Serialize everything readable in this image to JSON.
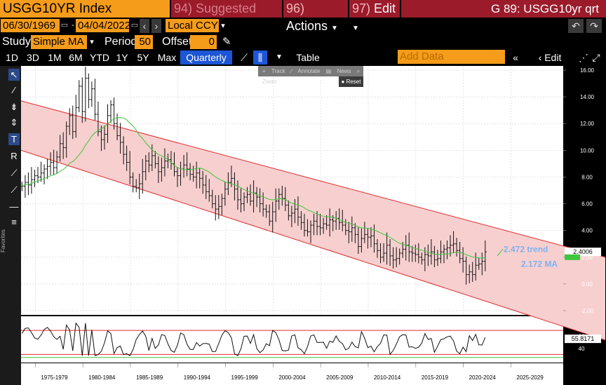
{
  "header": {
    "ticker": "USGG10YR Index",
    "suggested": "Suggested Charts",
    "suggested_num": "94)",
    "actions": "Actions",
    "actions_num": "96)",
    "edit": "Edit",
    "edit_num": "97)",
    "graph_title": "G 89: USGG10yr qrt"
  },
  "dates": {
    "start": "06/30/1969",
    "end": "04/04/2022",
    "currency": "Local CCY"
  },
  "study": {
    "label": "Study",
    "type": "Simple MA",
    "period_label": "Period",
    "period": "50",
    "offset_label": "Offset",
    "offset": "0"
  },
  "tabs": [
    "1D",
    "3D",
    "1M",
    "6M",
    "YTD",
    "1Y",
    "5Y",
    "Max"
  ],
  "period_select": "Quarterly",
  "table_label": "Table",
  "add_data_placeholder": "Add Data",
  "edit_chart": "Edit Chart",
  "float_tools": [
    "Track",
    "Annotate",
    "News",
    "Zoom"
  ],
  "reset_label": "Reset",
  "favorites_label": "Favorites",
  "colors": {
    "accent_orange": "#f59c1a",
    "menu_red": "#9b1b2b",
    "channel_red": "#e32b2b",
    "ma_green": "#3ec63e",
    "label_blue": "#7fb2ef"
  },
  "chart_data": [
    {
      "type": "line",
      "title": "",
      "ylim": [
        -2,
        16
      ],
      "yticks": [
        "16.00",
        "14.00",
        "12.00",
        "10.00",
        "8.00",
        "6.00",
        "4.00",
        "2.00",
        "0.00",
        "-2.00"
      ],
      "ytick_values": [
        16,
        14,
        12,
        10,
        8,
        6,
        4,
        2,
        0,
        -2
      ],
      "last_value": "2.4006",
      "annotations": [
        "2.472 trend",
        "2.172 MA"
      ],
      "series": [
        {
          "values": [
            7.3,
            7.6,
            7.4,
            7.8,
            8.1,
            8.0,
            8.3,
            8.6,
            8.8,
            9.1,
            8.7,
            9.5,
            10.5,
            10.2,
            11.8,
            12.6,
            11.4,
            13.2,
            14.8,
            12.9,
            15.4,
            13.8,
            14.6,
            12.7,
            11.4,
            10.8,
            11.2,
            12.6,
            13.4,
            12.0,
            11.1,
            10.6,
            9.7,
            9.1,
            8.0,
            7.3,
            7.2,
            7.5,
            8.4,
            9.2,
            8.9,
            9.6,
            9.0,
            8.4,
            8.7,
            9.2,
            9.3,
            9.0,
            8.4,
            8.1,
            8.6,
            8.9,
            8.6,
            8.2,
            8.0,
            8.3,
            7.9,
            7.4,
            6.9,
            6.6,
            6.0,
            5.6,
            5.8,
            6.4,
            7.1,
            7.6,
            7.9,
            7.1,
            6.3,
            6.0,
            6.5,
            6.7,
            6.2,
            6.8,
            6.5,
            6.0,
            5.6,
            5.4,
            4.7,
            5.4,
            6.2,
            6.7,
            6.4,
            5.9,
            5.1,
            5.3,
            5.6,
            5.0,
            4.6,
            4.0,
            3.9,
            4.4,
            4.7,
            4.3,
            4.2,
            4.5,
            4.4,
            4.8,
            4.7,
            4.9,
            4.6,
            4.4,
            4.0,
            3.9,
            4.2,
            3.7,
            2.8,
            3.4,
            3.7,
            3.5,
            3.6,
            3.0,
            2.5,
            2.0,
            2.3,
            2.9,
            2.1,
            1.8,
            1.9,
            2.3,
            2.6,
            2.9,
            2.4,
            2.3,
            2.2,
            2.0,
            1.8,
            2.2,
            2.1,
            2.4,
            1.8,
            1.9,
            2.4,
            2.6,
            2.7,
            2.9,
            3.0,
            2.5,
            1.9,
            1.7,
            0.7,
            0.9,
            0.7,
            1.4,
            1.5,
            1.7,
            2.4
          ]
        }
      ]
    },
    {
      "type": "line",
      "title": "",
      "last_value": "55.8171",
      "ytick_visible": [
        "60",
        "40"
      ]
    }
  ],
  "xaxis_labels": [
    "1975-1979",
    "1980-1984",
    "1985-1989",
    "1990-1994",
    "1995-1999",
    "2000-2004",
    "2005-2009",
    "2010-2014",
    "2015-2019",
    "2020-2024",
    "2025-2029"
  ]
}
